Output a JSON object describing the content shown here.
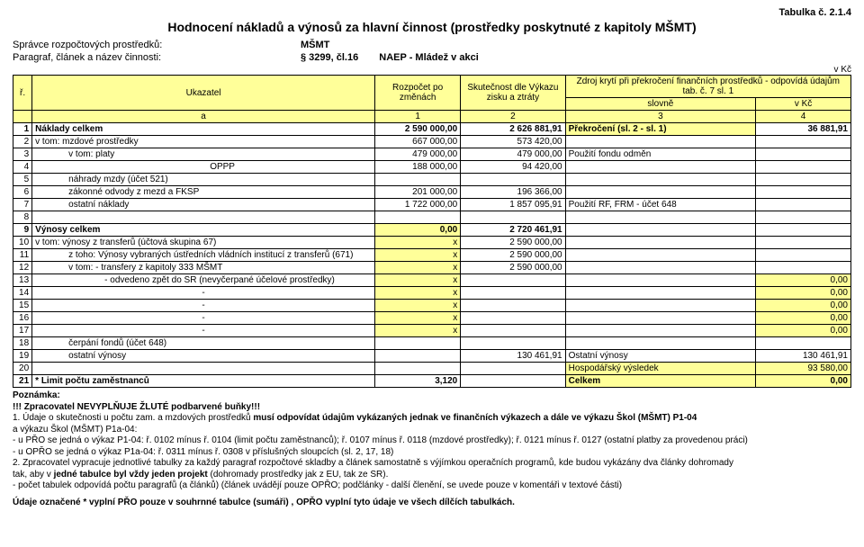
{
  "tab_num": "Tabulka č. 2.1.4",
  "title": "Hodnocení nákladů a výnosů za hlavní činnost (prostředky poskytnuté z kapitoly MŠMT)",
  "hdr": {
    "spravce_lbl": "Správce rozpočtových prostředků:",
    "spravce_val": "MŠMT",
    "para_lbl": "Paragraf, článek a název činnosti:",
    "para_val": "§ 3299, čl.16",
    "para_name": "NAEP - Mládež v akci",
    "vkc": "v Kč"
  },
  "headers": {
    "r": "ř.",
    "ukazatel": "Ukazatel",
    "rozpocet": "Rozpočet po změnách",
    "skutecnost": "Skutečnost dle Výkazu zisku a ztráty",
    "zdroj": "Zdroj krytí při překročení finančních prostředků - odpovídá údajům tab. č. 7 sl. 1",
    "slovne": "slovně",
    "vkc": "v Kč",
    "a": "a",
    "c1": "1",
    "c2": "2",
    "c3": "3",
    "c4": "4"
  },
  "rows": [
    {
      "n": "1",
      "lbl": "Náklady celkem",
      "bold": true,
      "c1": "2 590 000,00",
      "c2": "2 626 881,91",
      "c3": "Překročení (sl. 2 - sl. 1)",
      "c4": "36 881,91",
      "c3y": true
    },
    {
      "n": "2",
      "lbl": "v tom: mzdové prostředky",
      "c1": "667 000,00",
      "c2": "573 420,00",
      "c3": "",
      "c4": ""
    },
    {
      "n": "3",
      "lbl": "v tom: platy",
      "ind": "indent2",
      "c1": "479 000,00",
      "c2": "479 000,00",
      "c3": "Použití fondu odměn",
      "c4": ""
    },
    {
      "n": "4",
      "lbl": "OPPP",
      "ind": "indent3",
      "c1": "188 000,00",
      "c2": "94 420,00",
      "c3": "",
      "c4": ""
    },
    {
      "n": "5",
      "lbl": "náhrady mzdy (účet 521)",
      "ind": "indent2",
      "c1": "",
      "c2": "",
      "c3": "",
      "c4": ""
    },
    {
      "n": "6",
      "lbl": "zákonné odvody z mezd a FKSP",
      "ind": "indent2",
      "c1": "201 000,00",
      "c2": "196 366,00",
      "c3": "",
      "c4": ""
    },
    {
      "n": "7",
      "lbl": "ostatní náklady",
      "ind": "indent2",
      "c1": "1 722 000,00",
      "c2": "1 857 095,91",
      "c3": "Použití RF, FRM - účet 648",
      "c4": ""
    },
    {
      "n": "8",
      "lbl": "",
      "c1": "",
      "c2": "",
      "c3": "",
      "c4": ""
    },
    {
      "n": "9",
      "lbl": "Výnosy celkem",
      "bold": true,
      "c1": "0,00",
      "c1y": true,
      "c2": "2 720 461,91",
      "c3": "",
      "c4": ""
    },
    {
      "n": "10",
      "lbl": "v tom: výnosy z transferů (účtová skupina 67)",
      "c1": "x",
      "c1y": true,
      "c2": "2 590 000,00",
      "c3": "",
      "c4": ""
    },
    {
      "n": "11",
      "lbl": "z toho: Výnosy vybraných ústředních vládních institucí z transferů  (671)",
      "ind": "indent2",
      "c1": "x",
      "c1y": true,
      "c2": "2 590 000,00",
      "c3": "",
      "c4": ""
    },
    {
      "n": "12",
      "lbl": "v tom: - transfery z kapitoly 333 MŠMT",
      "ind": "indent2",
      "c1": "x",
      "c1y": true,
      "c2": "2 590 000,00",
      "c3": "",
      "c4": ""
    },
    {
      "n": "13",
      "lbl": "- odvedeno zpět do SR (nevyčerpané účelové prostředky)",
      "ind": "indent4",
      "c1": "x",
      "c1y": true,
      "c2": "",
      "c3": "",
      "c4": "0,00",
      "c4y": true
    },
    {
      "n": "14",
      "lbl": "-",
      "center": true,
      "c1": "x",
      "c1y": true,
      "c2": "",
      "c3": "",
      "c4": "0,00",
      "c4y": true
    },
    {
      "n": "15",
      "lbl": "-",
      "center": true,
      "c1": "x",
      "c1y": true,
      "c2": "",
      "c3": "",
      "c4": "0,00",
      "c4y": true
    },
    {
      "n": "16",
      "lbl": "-",
      "center": true,
      "c1": "x",
      "c1y": true,
      "c2": "",
      "c3": "",
      "c4": "0,00",
      "c4y": true
    },
    {
      "n": "17",
      "lbl": "-",
      "center": true,
      "c1": "x",
      "c1y": true,
      "c2": "",
      "c3": "",
      "c4": "0,00",
      "c4y": true
    },
    {
      "n": "18",
      "lbl": "čerpání fondů (účet 648)",
      "ind": "indent2",
      "c1": "",
      "c2": "",
      "c3": "",
      "c4": ""
    },
    {
      "n": "19",
      "lbl": "ostatní výnosy",
      "ind": "indent2",
      "c1": "",
      "c2": "130 461,91",
      "c3": "Ostatní výnosy",
      "c4": "130 461,91"
    },
    {
      "n": "20",
      "lbl": "",
      "c1": "",
      "c2": "",
      "c3": "Hospodářský výsledek",
      "c3y": true,
      "c4": "93 580,00",
      "c4y": true
    },
    {
      "n": "21",
      "lbl": "* Limit počtu zaměstnanců",
      "bold": true,
      "c1": "3,120",
      "c2": "",
      "c3": "Celkem",
      "c3y": true,
      "c4": "0,00",
      "c4y": true
    }
  ],
  "notes": {
    "pozn": "Poznámka:",
    "l1": "!!! Zpracovatel NEVYPLŇUJE ŽLUTÉ podbarvené buňky!!!",
    "l2a": "1. Údaje o skutečnosti u počtu zam.  a mzdových prostředků ",
    "l2b": "musí odpovídat údajům vykázaných jednak ve finančních výkazech a dále  ve výkazu Škol (MŠMT) P1-04",
    "l3": "    a výkazu Škol (MŠMT) P1a-04:",
    "l4": "    - u PŘO se jedná o výkaz P1-04: ř. 0102 mínus ř. 0104 (limit počtu zaměstnanců); ř. 0107 mínus ř. 0118 (mzdové prostředky); ř. 0121 mínus ř. 0127 (ostatní platby za provedenou práci)",
    "l5": "    - u OPŘO se jedná o výkaz P1a-04: ř. 0311 mínus ř. 0308 v příslušných sloupcích (sl. 2, 17, 18)",
    "l6": "2. Zpracovatel vypracuje jednotlivé tabulky za každý paragraf rozpočtové skladby a článek samostatně s výjímkou operačních programů, kde budou vykázány dva články dohromady",
    "l7a": "    tak, aby v ",
    "l7b": "jedné tabulce byl vždy jeden projekt",
    "l7c": " (dohromady prostředky jak z EU, tak ze SR).",
    "l8": "    - počet tabulek odpovídá počtu paragrafů (a článků) (článek uvádějí pouze OPŘO; podčlánky - další členění, se uvede pouze v komentáři v textové části)",
    "l9": "Údaje označené * vyplní PŘO pouze v souhrnné tabulce (sumáři) , OPŘO vyplní tyto údaje ve všech dílčích tabulkách."
  }
}
